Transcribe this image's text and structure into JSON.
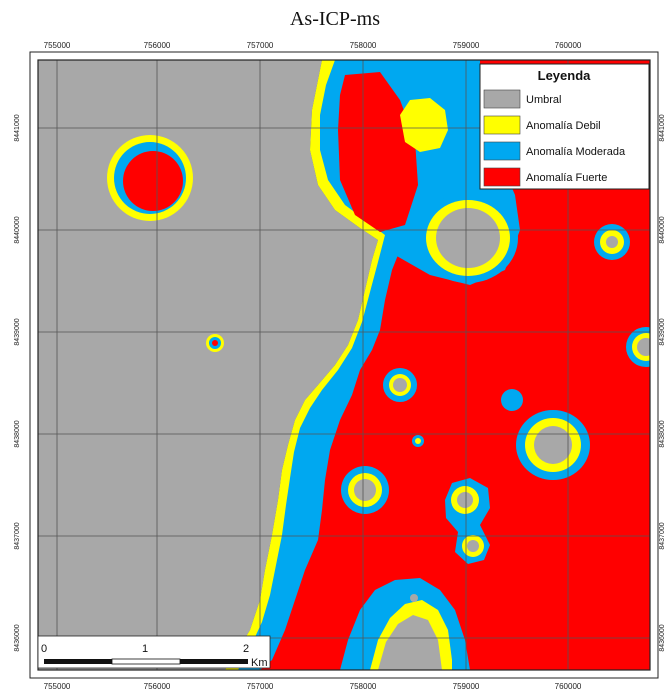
{
  "title": "As-ICP-ms",
  "x_ticks": [
    "755000",
    "756000",
    "757000",
    "758000",
    "759000",
    "760000"
  ],
  "y_ticks": [
    "8441000",
    "8440000",
    "8439000",
    "8438000",
    "8437000",
    "8436000"
  ],
  "legend": {
    "title": "Leyenda",
    "items": [
      {
        "label": "Umbral",
        "color": "#a8a8a8"
      },
      {
        "label": "Anomalía Debil",
        "color": "#ffff00"
      },
      {
        "label": "Anomalía Moderada",
        "color": "#00a8f0"
      },
      {
        "label": "Anomalía Fuerte",
        "color": "#ff0000"
      }
    ]
  },
  "scalebar": {
    "ticks": [
      "0",
      "1",
      "2"
    ],
    "unit": "Km"
  }
}
